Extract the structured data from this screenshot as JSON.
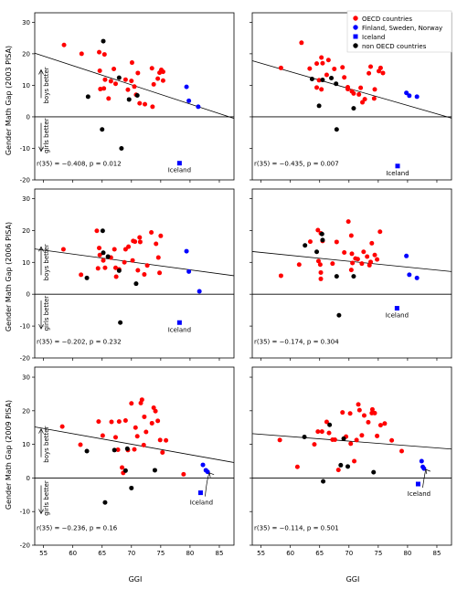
{
  "figure": {
    "ylabels": [
      "Gender Math Gap (2003 PISA)",
      "Gender Math Gap (2006 PISA)",
      "Gender Math Gap (2009 PISA)"
    ],
    "xlabel": "GGI",
    "boys_label": "boys better",
    "girls_label": "girls better"
  },
  "legend": {
    "placement": "top-right of top-right panel",
    "entries": [
      {
        "label": "OECD countries",
        "color": "#ff0000",
        "marker": "circle"
      },
      {
        "label": "Finland, Sweden, Norway",
        "color": "#0000ff",
        "marker": "circle"
      },
      {
        "label": "Iceland",
        "color": "#0000ff",
        "marker": "square"
      },
      {
        "label": "non OECD countries",
        "color": "#000000",
        "marker": "circle"
      }
    ]
  },
  "chart_data": [
    {
      "type": "scatter",
      "row": 0,
      "col": 0,
      "xlim": [
        53.5,
        87.5
      ],
      "ylim": [
        -20,
        33
      ],
      "xticks": [
        55,
        60,
        65,
        70,
        75,
        80,
        85
      ],
      "yticks": [
        -20,
        -10,
        0,
        10,
        20,
        30
      ],
      "stat": "r(35) = −0.408, p = 0.012",
      "iceland_label": "Iceland",
      "regression": [
        [
          53.5,
          20.2
        ],
        [
          87.5,
          -0.5
        ]
      ],
      "oecd": [
        [
          58.5,
          22.8
        ],
        [
          61.5,
          20.0
        ],
        [
          64.5,
          20.5
        ],
        [
          65.4,
          19.8
        ],
        [
          64.6,
          14.6
        ],
        [
          65.5,
          11.8
        ],
        [
          67.0,
          15.2
        ],
        [
          66.5,
          11.3
        ],
        [
          67.3,
          10.5
        ],
        [
          65.3,
          9.0
        ],
        [
          64.7,
          8.8
        ],
        [
          66.1,
          5.8
        ],
        [
          69.0,
          11.8
        ],
        [
          70.0,
          11.4
        ],
        [
          69.4,
          8.6
        ],
        [
          70.5,
          9.6
        ],
        [
          71.1,
          13.9
        ],
        [
          70.8,
          7.0
        ],
        [
          71.4,
          4.3
        ],
        [
          72.3,
          4.0
        ],
        [
          73.5,
          15.4
        ],
        [
          74.8,
          14.0
        ],
        [
          75.1,
          14.9
        ],
        [
          75.4,
          14.3
        ],
        [
          74.5,
          12.1
        ],
        [
          73.8,
          10.3
        ],
        [
          75.4,
          11.5
        ],
        [
          73.6,
          3.2
        ],
        [
          70.1,
          17.2
        ]
      ],
      "nordic": [
        [
          79.4,
          9.5
        ],
        [
          79.8,
          5.1
        ],
        [
          81.4,
          3.2
        ]
      ],
      "iceland": [
        [
          78.2,
          -14.7
        ]
      ],
      "nonoecd": [
        [
          65.2,
          24.0
        ],
        [
          67.9,
          12.4
        ],
        [
          69.6,
          5.5
        ],
        [
          62.6,
          6.4
        ],
        [
          71.0,
          6.8
        ],
        [
          65.0,
          -4.0
        ],
        [
          68.3,
          -10.0
        ]
      ]
    },
    {
      "type": "scatter",
      "row": 0,
      "col": 1,
      "xlim": [
        53.5,
        87.5
      ],
      "ylim": [
        -20,
        33
      ],
      "xticks": [
        55,
        60,
        65,
        70,
        75,
        80,
        85
      ],
      "yticks": [
        -20,
        -10,
        0,
        10,
        20,
        30
      ],
      "stat": "r(35) = −0.435, p = 0.007",
      "iceland_label": "Iceland",
      "regression": [
        [
          53.5,
          17.8
        ],
        [
          87.5,
          -0.4
        ]
      ],
      "oecd": [
        [
          58.4,
          15.5
        ],
        [
          61.9,
          23.5
        ],
        [
          63.3,
          15.3
        ],
        [
          64.5,
          16.9
        ],
        [
          65.3,
          18.8
        ],
        [
          65.5,
          17.0
        ],
        [
          66.5,
          18.0
        ],
        [
          67.5,
          15.2
        ],
        [
          68.9,
          15.7
        ],
        [
          66.2,
          13.3
        ],
        [
          64.9,
          11.6
        ],
        [
          64.5,
          9.3
        ],
        [
          65.3,
          8.7
        ],
        [
          69.2,
          12.5
        ],
        [
          69.8,
          9.4
        ],
        [
          70.5,
          8.1
        ],
        [
          70.8,
          7.4
        ],
        [
          72.0,
          9.2
        ],
        [
          72.7,
          5.6
        ],
        [
          73.4,
          13.8
        ],
        [
          73.7,
          15.9
        ],
        [
          74.4,
          8.7
        ],
        [
          75.1,
          14.5
        ],
        [
          75.4,
          15.5
        ],
        [
          75.8,
          13.9
        ],
        [
          74.3,
          5.8
        ],
        [
          72.3,
          4.6
        ],
        [
          71.7,
          7.1
        ],
        [
          69.8,
          8.8
        ]
      ],
      "nordic": [
        [
          79.8,
          7.6
        ],
        [
          80.3,
          6.7
        ],
        [
          81.6,
          6.4
        ]
      ],
      "iceland": [
        [
          78.3,
          -15.6
        ]
      ],
      "nonoecd": [
        [
          65.5,
          11.7
        ],
        [
          67.0,
          12.3
        ],
        [
          63.7,
          12.0
        ],
        [
          67.8,
          10.5
        ],
        [
          64.9,
          3.5
        ],
        [
          70.8,
          2.7
        ],
        [
          67.9,
          -4.0
        ]
      ]
    },
    {
      "type": "scatter",
      "row": 1,
      "col": 0,
      "xlim": [
        53.5,
        87.5
      ],
      "ylim": [
        -20,
        33
      ],
      "xticks": [
        55,
        60,
        65,
        70,
        75,
        80,
        85
      ],
      "yticks": [
        -20,
        -10,
        0,
        10,
        20,
        30
      ],
      "stat": "r(35) = −0.202, p = 0.232",
      "iceland_label": "Iceland",
      "regression": [
        [
          53.5,
          14.2
        ],
        [
          87.5,
          5.8
        ]
      ],
      "oecd": [
        [
          58.4,
          14.1
        ],
        [
          61.4,
          6.1
        ],
        [
          64.1,
          19.9
        ],
        [
          64.6,
          12.3
        ],
        [
          65.2,
          10.6
        ],
        [
          64.3,
          8.1
        ],
        [
          65.5,
          8.3
        ],
        [
          67.1,
          14.1
        ],
        [
          66.5,
          11.5
        ],
        [
          67.3,
          8.3
        ],
        [
          67.9,
          7.8
        ],
        [
          67.4,
          5.5
        ],
        [
          69.0,
          14.1
        ],
        [
          69.5,
          14.9
        ],
        [
          70.3,
          16.7
        ],
        [
          71.4,
          17.8
        ],
        [
          71.5,
          16.4
        ],
        [
          70.2,
          10.6
        ],
        [
          71.1,
          7.5
        ],
        [
          72.2,
          6.2
        ],
        [
          72.7,
          9.0
        ],
        [
          73.4,
          19.4
        ],
        [
          74.2,
          15.8
        ],
        [
          75.0,
          18.3
        ],
        [
          74.6,
          11.5
        ],
        [
          74.8,
          6.7
        ],
        [
          70.6,
          16.5
        ],
        [
          68.8,
          10.0
        ],
        [
          64.5,
          14.5
        ]
      ],
      "nordic": [
        [
          79.4,
          13.5
        ],
        [
          79.8,
          7.1
        ],
        [
          81.6,
          0.9
        ]
      ],
      "iceland": [
        [
          78.2,
          -8.9
        ]
      ],
      "nonoecd": [
        [
          65.1,
          19.9
        ],
        [
          65.2,
          13.0
        ],
        [
          66.0,
          11.8
        ],
        [
          67.9,
          7.4
        ],
        [
          62.4,
          5.1
        ],
        [
          70.8,
          3.3
        ],
        [
          68.1,
          -8.9
        ]
      ]
    },
    {
      "type": "scatter",
      "row": 1,
      "col": 1,
      "xlim": [
        53.5,
        87.5
      ],
      "ylim": [
        -20,
        33
      ],
      "xticks": [
        55,
        60,
        65,
        70,
        75,
        80,
        85
      ],
      "yticks": [
        -20,
        -10,
        0,
        10,
        20,
        30
      ],
      "stat": "r(35) = −0.174, p = 0.304",
      "iceland_label": "Iceland",
      "regression": [
        [
          53.5,
          13.4
        ],
        [
          87.5,
          7.1
        ]
      ],
      "oecd": [
        [
          58.4,
          5.8
        ],
        [
          61.5,
          9.3
        ],
        [
          63.4,
          16.5
        ],
        [
          64.7,
          20.1
        ],
        [
          65.2,
          19.1
        ],
        [
          65.5,
          16.7
        ],
        [
          64.8,
          10.4
        ],
        [
          65.1,
          9.3
        ],
        [
          65.2,
          6.8
        ],
        [
          65.2,
          4.8
        ],
        [
          67.9,
          16.4
        ],
        [
          67.2,
          9.6
        ],
        [
          69.2,
          13.1
        ],
        [
          69.9,
          22.8
        ],
        [
          70.4,
          18.4
        ],
        [
          70.5,
          12.7
        ],
        [
          71.1,
          11.2
        ],
        [
          71.5,
          11.0
        ],
        [
          72.2,
          9.6
        ],
        [
          72.5,
          13.3
        ],
        [
          73.1,
          11.8
        ],
        [
          73.5,
          9.1
        ],
        [
          73.9,
          16.0
        ],
        [
          74.4,
          12.3
        ],
        [
          74.8,
          10.9
        ],
        [
          75.3,
          19.6
        ],
        [
          70.4,
          7.6
        ],
        [
          73.7,
          10.1
        ],
        [
          70.6,
          9.8
        ]
      ],
      "nordic": [
        [
          79.8,
          12.0
        ],
        [
          80.3,
          6.1
        ],
        [
          81.6,
          5.1
        ]
      ],
      "iceland": [
        [
          78.2,
          -4.4
        ]
      ],
      "nonoecd": [
        [
          62.5,
          15.3
        ],
        [
          65.4,
          18.9
        ],
        [
          65.5,
          17.0
        ],
        [
          64.5,
          13.3
        ],
        [
          67.9,
          5.6
        ],
        [
          70.8,
          5.6
        ],
        [
          68.3,
          -6.6
        ]
      ]
    },
    {
      "type": "scatter",
      "row": 2,
      "col": 0,
      "xlim": [
        53.5,
        87.5
      ],
      "ylim": [
        -20,
        33
      ],
      "xticks": [
        55,
        60,
        65,
        70,
        75,
        80,
        85
      ],
      "yticks": [
        -20,
        -10,
        0,
        10,
        20,
        30
      ],
      "stat": "r(35) = −0.236, p = 0.16",
      "iceland_label": "Iceland",
      "regression": [
        [
          53.5,
          15.2
        ],
        [
          87.5,
          4.6
        ]
      ],
      "oecd": [
        [
          58.2,
          15.3
        ],
        [
          61.3,
          9.9
        ],
        [
          64.4,
          16.8
        ],
        [
          65.1,
          12.6
        ],
        [
          66.6,
          16.7
        ],
        [
          67.3,
          12.1
        ],
        [
          67.9,
          16.8
        ],
        [
          67.7,
          8.4
        ],
        [
          68.4,
          3.1
        ],
        [
          69.0,
          17.1
        ],
        [
          69.4,
          8.3
        ],
        [
          70.0,
          22.2
        ],
        [
          70.7,
          15.0
        ],
        [
          71.0,
          12.4
        ],
        [
          71.6,
          22.3
        ],
        [
          71.8,
          23.3
        ],
        [
          72.2,
          18.2
        ],
        [
          72.1,
          9.8
        ],
        [
          72.5,
          13.7
        ],
        [
          73.5,
          16.3
        ],
        [
          73.8,
          20.9
        ],
        [
          74.1,
          19.9
        ],
        [
          74.5,
          17.0
        ],
        [
          74.9,
          11.3
        ],
        [
          75.3,
          7.6
        ],
        [
          75.9,
          11.2
        ],
        [
          68.6,
          1.5
        ],
        [
          70.5,
          8.5
        ],
        [
          78.9,
          1.1
        ]
      ],
      "nordic": [
        [
          82.2,
          3.9
        ],
        [
          82.7,
          2.3
        ],
        [
          83.0,
          1.8
        ]
      ],
      "iceland": [
        [
          81.8,
          -4.4
        ]
      ],
      "nonoecd": [
        [
          62.4,
          8.0
        ],
        [
          67.1,
          8.3
        ],
        [
          69.0,
          2.2
        ],
        [
          74.0,
          2.3
        ],
        [
          65.5,
          -7.3
        ],
        [
          70.0,
          -3.0
        ],
        [
          69.3,
          8.7
        ]
      ]
    },
    {
      "type": "scatter",
      "row": 2,
      "col": 1,
      "xlim": [
        53.5,
        87.5
      ],
      "ylim": [
        -20,
        33
      ],
      "xticks": [
        55,
        60,
        65,
        70,
        75,
        80,
        85
      ],
      "yticks": [
        -20,
        -10,
        0,
        10,
        20,
        30
      ],
      "stat": "r(35) = −0.114, p = 0.501",
      "iceland_label": "Iceland",
      "regression": [
        [
          53.5,
          13.2
        ],
        [
          87.5,
          8.6
        ]
      ],
      "oecd": [
        [
          58.2,
          11.3
        ],
        [
          61.2,
          3.3
        ],
        [
          64.1,
          10.0
        ],
        [
          64.7,
          13.8
        ],
        [
          65.4,
          13.8
        ],
        [
          66.2,
          16.7
        ],
        [
          66.6,
          13.4
        ],
        [
          67.2,
          11.4
        ],
        [
          67.6,
          11.4
        ],
        [
          68.2,
          2.4
        ],
        [
          68.9,
          19.5
        ],
        [
          69.5,
          12.3
        ],
        [
          70.2,
          19.2
        ],
        [
          70.3,
          10.2
        ],
        [
          70.9,
          5.0
        ],
        [
          71.3,
          11.3
        ],
        [
          71.6,
          21.9
        ],
        [
          71.8,
          20.2
        ],
        [
          72.2,
          12.7
        ],
        [
          72.6,
          18.6
        ],
        [
          73.3,
          16.6
        ],
        [
          73.9,
          19.3
        ],
        [
          74.0,
          20.4
        ],
        [
          74.4,
          19.3
        ],
        [
          74.8,
          12.5
        ],
        [
          75.4,
          15.7
        ],
        [
          76.1,
          16.2
        ],
        [
          77.3,
          11.2
        ],
        [
          79.0,
          8.0
        ]
      ],
      "nordic": [
        [
          82.4,
          5.0
        ],
        [
          82.6,
          3.3
        ],
        [
          82.8,
          2.8
        ]
      ],
      "iceland": [
        [
          81.8,
          -1.8
        ]
      ],
      "nonoecd": [
        [
          62.4,
          12.2
        ],
        [
          66.7,
          15.8
        ],
        [
          69.1,
          11.7
        ],
        [
          68.6,
          3.8
        ],
        [
          69.8,
          3.4
        ],
        [
          74.2,
          1.7
        ],
        [
          65.6,
          -1.0
        ]
      ]
    }
  ]
}
